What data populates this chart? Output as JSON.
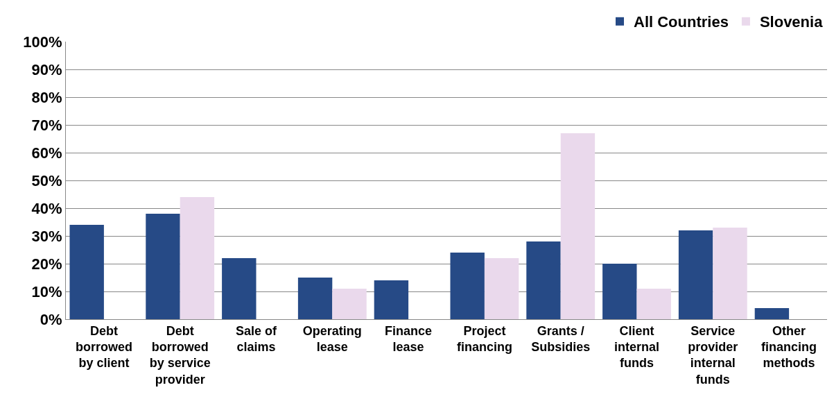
{
  "chart_data": {
    "type": "bar",
    "categories": [
      "Debt borrowed by client",
      "Debt borrowed by service provider",
      "Sale of claims",
      "Operating lease",
      "Finance lease",
      "Project financing",
      "Grants / Subsidies",
      "Client internal funds",
      "Service provider internal funds",
      "Other financing methods"
    ],
    "series": [
      {
        "name": "All Countries",
        "color": "#264a86",
        "values": [
          34,
          38,
          22,
          15,
          14,
          24,
          28,
          20,
          32,
          4
        ]
      },
      {
        "name": "Slovenia",
        "color": "#ead9ec",
        "values": [
          0,
          44,
          0,
          11,
          0,
          22,
          67,
          11,
          33,
          0
        ]
      }
    ],
    "ylim": [
      0,
      100
    ],
    "yticks": [
      {
        "value": 0,
        "label": "0%"
      },
      {
        "value": 10,
        "label": "10%"
      },
      {
        "value": 20,
        "label": "20%"
      },
      {
        "value": 30,
        "label": "30%"
      },
      {
        "value": 40,
        "label": "40%"
      },
      {
        "value": 50,
        "label": "50%"
      },
      {
        "value": 60,
        "label": "60%"
      },
      {
        "value": 70,
        "label": "70%"
      },
      {
        "value": 80,
        "label": "80%"
      },
      {
        "value": 90,
        "label": "90%"
      },
      {
        "value": 100,
        "label": "100%"
      }
    ],
    "grid": "y",
    "legend": "top right"
  }
}
